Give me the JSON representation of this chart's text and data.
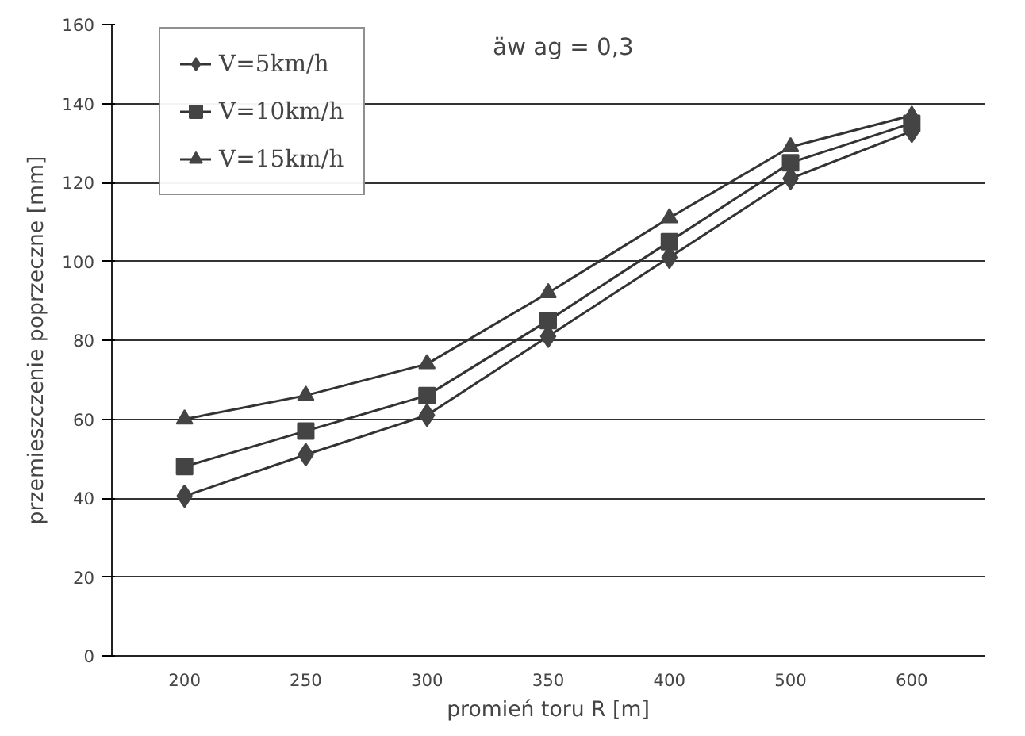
{
  "chart_data": {
    "type": "line",
    "xlabel": "promień toru R [m]",
    "ylabel": "przemieszczenie poprzeczne [mm]",
    "categories": [
      "200",
      "250",
      "300",
      "350",
      "400",
      "500",
      "600"
    ],
    "series": [
      {
        "name": "V=5km/h",
        "color": "#333333",
        "marker": "diamond",
        "values": [
          40.5,
          51,
          61,
          81,
          101,
          121,
          133
        ]
      },
      {
        "name": "V=10km/h",
        "color": "#333333",
        "marker": "square",
        "values": [
          48,
          57,
          66,
          85,
          105,
          125,
          135
        ]
      },
      {
        "name": "V=15km/h",
        "color": "#333333",
        "marker": "triangle",
        "values": [
          60,
          66,
          74,
          92,
          111,
          129,
          137
        ]
      }
    ],
    "annotations": [
      "äw ag = 0,3"
    ],
    "ylim": [
      0,
      160
    ],
    "yticks": [
      0,
      20,
      40,
      60,
      80,
      100,
      120,
      140,
      160
    ],
    "grid": "y",
    "legend": "top left",
    "line_style": "solid"
  }
}
